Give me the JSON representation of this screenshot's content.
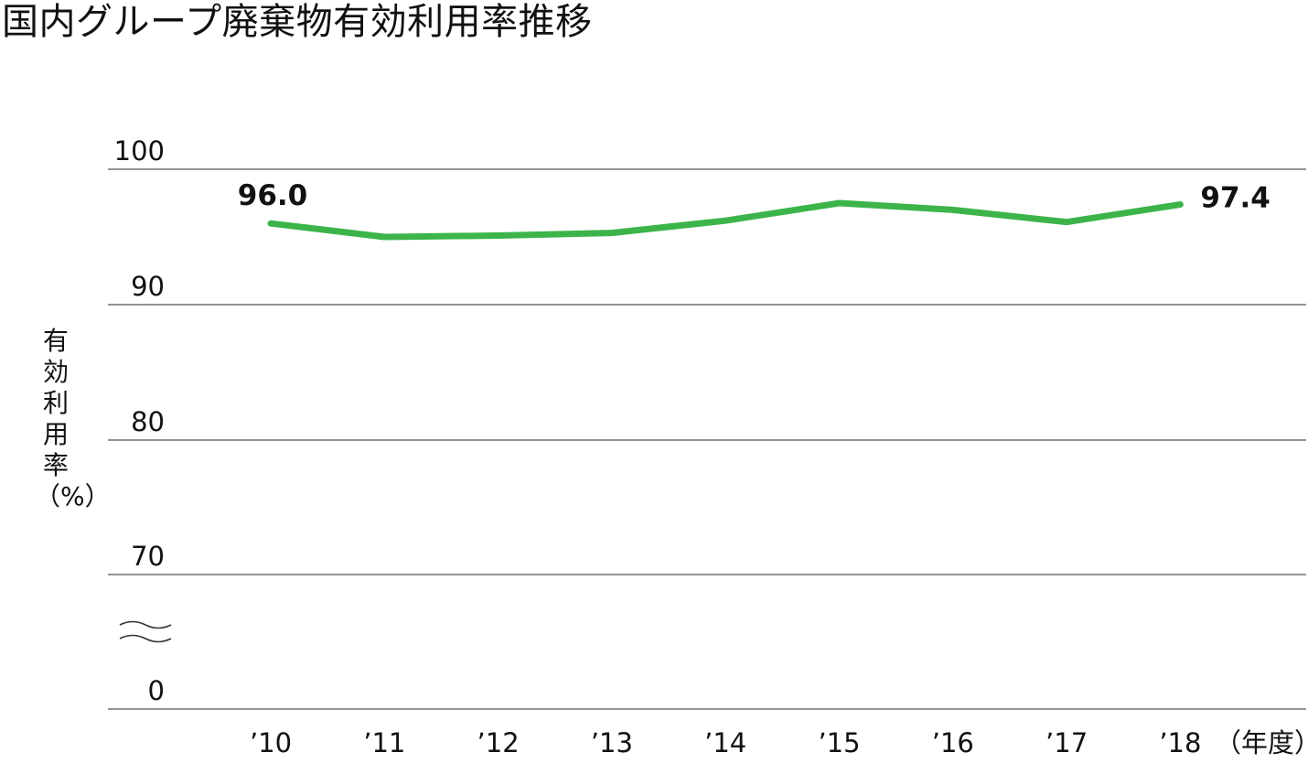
{
  "chart_data": {
    "type": "line",
    "title": "国内グループ廃棄物有効利用率推移",
    "ylabel": "有効利用率（%）",
    "xunit": "（年度）",
    "categories": [
      "’10",
      "’11",
      "’12",
      "’13",
      "’14",
      "’15",
      "’16",
      "’17",
      "’18"
    ],
    "series": [
      {
        "values": [
          96.0,
          95.0,
          95.1,
          95.3,
          96.2,
          97.5,
          97.0,
          96.1,
          97.4
        ],
        "color": "#3cb44a"
      }
    ],
    "yticks": [
      "100",
      "90",
      "80",
      "70",
      "0"
    ],
    "ylim": [
      0,
      100
    ],
    "axis_break": "between 0 and 70",
    "grid": true,
    "data_labels": [
      {
        "index": 0,
        "text": "96.0"
      },
      {
        "index": 8,
        "text": "97.4"
      }
    ]
  }
}
